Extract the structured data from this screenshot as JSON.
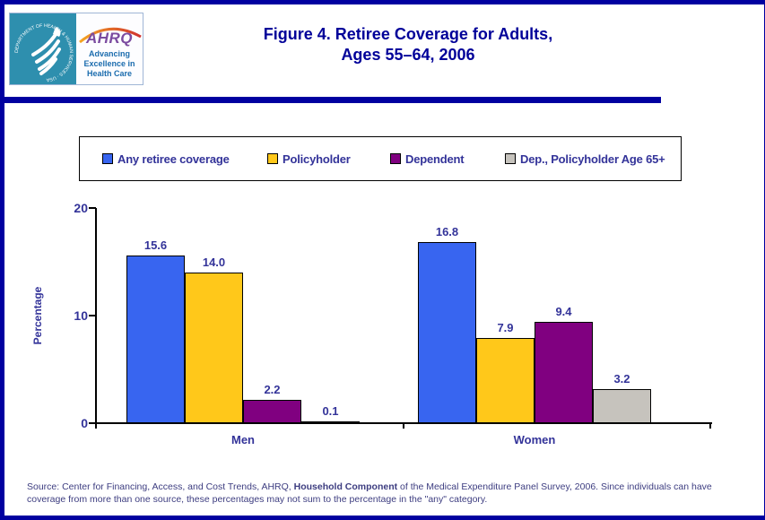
{
  "logo": {
    "hhs_circle_text": "DEPARTMENT OF HEALTH & HUMAN SERVICES · USA",
    "ahrq": "AHRQ",
    "tagline_line1": "Advancing",
    "tagline_line2": "Excellence in",
    "tagline_line3": "Health Care"
  },
  "title": {
    "line1": "Figure 4. Retiree Coverage for Adults,",
    "line2": "Ages 55–64, 2006"
  },
  "chart_data": {
    "type": "bar",
    "categories": [
      "Men",
      "Women"
    ],
    "series": [
      {
        "name": "Any retiree coverage",
        "color": "#3865f0",
        "values": [
          15.6,
          16.8
        ]
      },
      {
        "name": "Policyholder",
        "color": "#ffc81a",
        "values": [
          14.0,
          7.9
        ]
      },
      {
        "name": "Dependent",
        "color": "#800080",
        "values": [
          2.2,
          9.4
        ]
      },
      {
        "name": "Dep., Policyholder Age 65+",
        "color": "#c6c3bd",
        "values": [
          0.1,
          3.2
        ]
      }
    ],
    "title": "Figure 4. Retiree Coverage for Adults, Ages 55–64, 2006",
    "xlabel": "",
    "ylabel": "Percentage",
    "ylim": [
      0,
      20
    ],
    "yticks": [
      0,
      10,
      20
    ],
    "grid": false,
    "legend_position": "top",
    "bar_borders": "#000000"
  },
  "source": {
    "prefix": "Source: Center for Financing, Access, and Cost Trends, AHRQ, ",
    "bold": "Household Component",
    "suffix": " of the Medical Expenditure Panel Survey, 2006. Since individuals can have coverage from more than one source, these percentages may not sum to the percentage in the \"any\" category."
  },
  "colors": {
    "page_border": "#0000a0",
    "title_text": "#000099",
    "chart_text": "#333399",
    "source_text": "#3d3d80",
    "hhs_panel": "#2e8fae",
    "ahrq_purple": "#7b4ba0",
    "tagline_blue": "#1b6cae"
  }
}
